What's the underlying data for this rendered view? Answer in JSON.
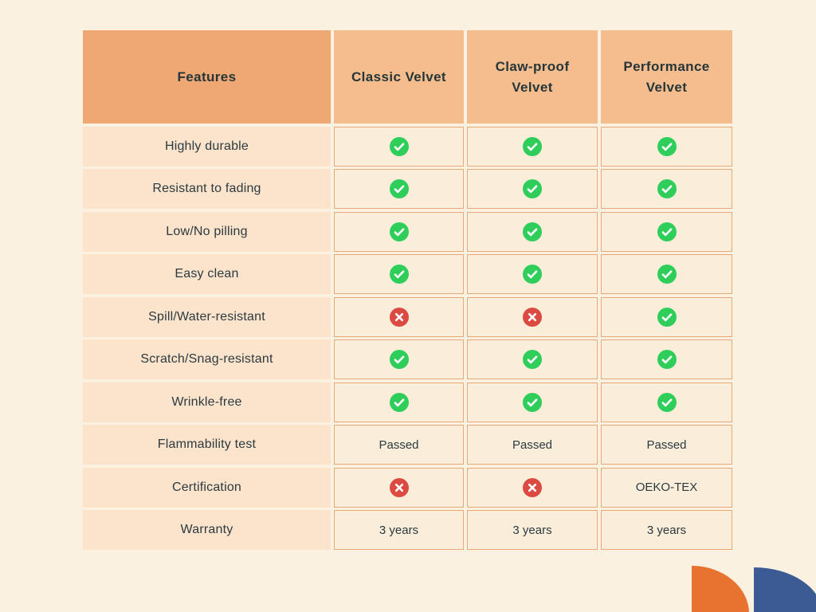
{
  "table": {
    "header": [
      "Features",
      "Classic Velvet",
      "Claw-proof Velvet",
      "Performance Velvet"
    ],
    "rows": [
      {
        "feature": "Highly durable",
        "values": [
          "check",
          "check",
          "check"
        ]
      },
      {
        "feature": "Resistant to fading",
        "values": [
          "check",
          "check",
          "check"
        ]
      },
      {
        "feature": "Low/No pilling",
        "values": [
          "check",
          "check",
          "check"
        ]
      },
      {
        "feature": "Easy clean",
        "values": [
          "check",
          "check",
          "check"
        ]
      },
      {
        "feature": "Spill/Water-resistant",
        "values": [
          "cross",
          "cross",
          "check"
        ]
      },
      {
        "feature": "Scratch/Snag-resistant",
        "values": [
          "check",
          "check",
          "check"
        ]
      },
      {
        "feature": "Wrinkle-free",
        "values": [
          "check",
          "check",
          "check"
        ]
      },
      {
        "feature": "Flammability test",
        "values": [
          "Passed",
          "Passed",
          "Passed"
        ]
      },
      {
        "feature": "Certification",
        "values": [
          "cross",
          "cross",
          "OEKO-TEX"
        ]
      },
      {
        "feature": "Warranty",
        "values": [
          "3 years",
          "3 years",
          "3 years"
        ]
      }
    ]
  },
  "icons": {
    "check": "check-icon",
    "cross": "cross-icon"
  },
  "colors": {
    "page_background": "#FAF1E1",
    "features_header_bg": "#EFA873",
    "product_header_bg": "#F5BD8E",
    "feature_cell_bg": "#FCE3CB",
    "value_cell_bg": "#FAEEDA",
    "value_cell_border": "#E5A877",
    "text_dark": "#263638",
    "check_green": "#2FCE5B",
    "cross_red": "#DC4B41",
    "deco_orange": "#E87230",
    "deco_blue": "#3C5B94"
  },
  "chart_data": {
    "type": "table",
    "title": "",
    "columns": [
      "Features",
      "Classic Velvet",
      "Claw-proof Velvet",
      "Performance Velvet"
    ],
    "rows": [
      [
        "Highly durable",
        "yes",
        "yes",
        "yes"
      ],
      [
        "Resistant to fading",
        "yes",
        "yes",
        "yes"
      ],
      [
        "Low/No pilling",
        "yes",
        "yes",
        "yes"
      ],
      [
        "Easy clean",
        "yes",
        "yes",
        "yes"
      ],
      [
        "Spill/Water-resistant",
        "no",
        "no",
        "yes"
      ],
      [
        "Scratch/Snag-resistant",
        "yes",
        "yes",
        "yes"
      ],
      [
        "Wrinkle-free",
        "yes",
        "yes",
        "yes"
      ],
      [
        "Flammability test",
        "Passed",
        "Passed",
        "Passed"
      ],
      [
        "Certification",
        "no",
        "no",
        "OEKO-TEX"
      ],
      [
        "Warranty",
        "3 years",
        "3 years",
        "3 years"
      ]
    ]
  }
}
